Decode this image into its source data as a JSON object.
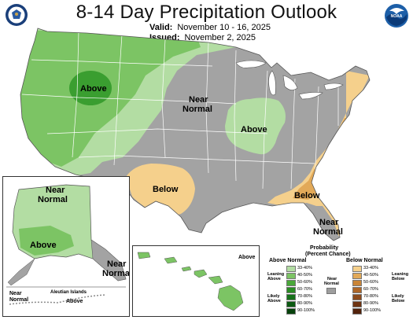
{
  "title": "8-14 Day Precipitation Outlook",
  "valid_label": "Valid:",
  "valid_value": "November 10 - 16, 2025",
  "issued_label": "Issued:",
  "issued_value": "November 2, 2025",
  "map_labels": {
    "above_west": "Above",
    "near_normal_central_1": "Near",
    "near_normal_central_2": "Normal",
    "above_midwest": "Above",
    "below_texas": "Below",
    "below_southeast": "Below",
    "near_normal_florida_1": "Near",
    "near_normal_florida_2": "Normal"
  },
  "alaska_labels": {
    "near_normal_north_1": "Near",
    "near_normal_north_2": "Normal",
    "above": "Above",
    "near_normal_se_1": "Near",
    "near_normal_se_2": "Normal",
    "near_normal_aleut_1": "Near",
    "near_normal_aleut_2": "Normal",
    "aleutian_islands": "Aleutian Islands",
    "above_aleut": "Above"
  },
  "hawaii_labels": {
    "above": "Above"
  },
  "legend": {
    "title_1": "Probability",
    "title_2": "(Percent Chance)",
    "above_header": "Above Normal",
    "below_header": "Below Normal",
    "near_normal_1": "Near",
    "near_normal_2": "Normal",
    "leaning_above_1": "Leaning",
    "leaning_above_2": "Above",
    "likely_above_1": "Likely",
    "likely_above_2": "Above",
    "leaning_below_1": "Leaning",
    "leaning_below_2": "Below",
    "likely_below_1": "Likely",
    "likely_below_2": "Below",
    "above_items": [
      {
        "label": "33-40%",
        "color": "#b3dda3"
      },
      {
        "label": "40-50%",
        "color": "#7cc464"
      },
      {
        "label": "50-60%",
        "color": "#4aa83a"
      },
      {
        "label": "60-70%",
        "color": "#2a8c24"
      },
      {
        "label": "70-80%",
        "color": "#16711a"
      },
      {
        "label": "80-90%",
        "color": "#0c5a12"
      },
      {
        "label": "90-100%",
        "color": "#06420b"
      }
    ],
    "below_items": [
      {
        "label": "33-40%",
        "color": "#f5d08c"
      },
      {
        "label": "40-50%",
        "color": "#e2a958"
      },
      {
        "label": "50-60%",
        "color": "#c98538"
      },
      {
        "label": "60-70%",
        "color": "#ad6628"
      },
      {
        "label": "70-80%",
        "color": "#8c4a1c"
      },
      {
        "label": "80-90%",
        "color": "#6e3412"
      },
      {
        "label": "90-100%",
        "color": "#52220b"
      }
    ],
    "near_color": "#9e9e9e"
  },
  "colors": {
    "near_normal": "#a3a3a3",
    "above_33": "#b3dda3",
    "above_40": "#7cc464",
    "above_50": "#3a9e30",
    "below_33": "#f5d08c",
    "below_40": "#e2a958",
    "water": "#ffffff"
  }
}
